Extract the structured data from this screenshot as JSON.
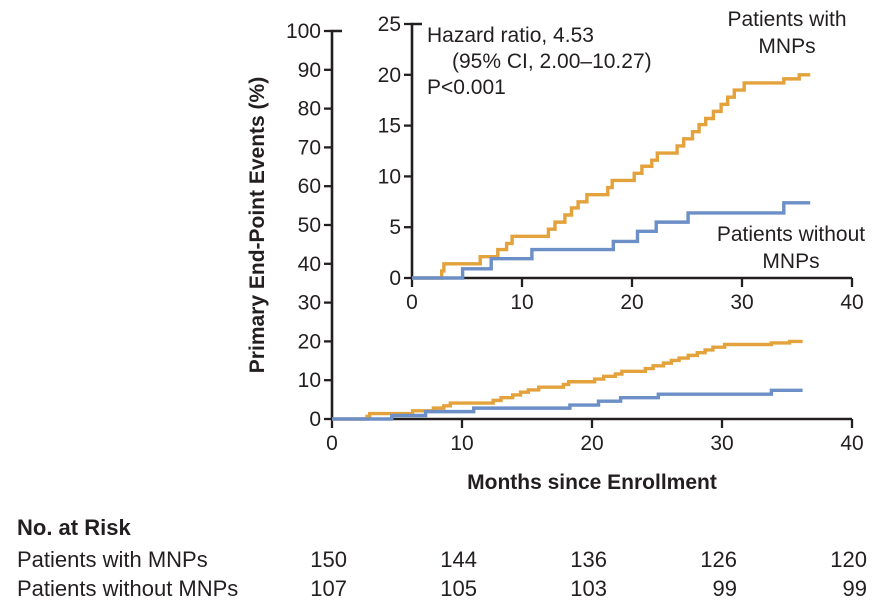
{
  "colors": {
    "with_mnps": "#E3A23C",
    "without_mnps": "#6B8FC6",
    "axis": "#231F20",
    "background": "#ffffff"
  },
  "chart_data": {
    "type": "line",
    "subtype": "kaplan-meier-cumulative-incidence-step",
    "title": "",
    "xlabel": "Months since Enrollment",
    "ylabel": "Primary End-Point Events (%)",
    "grid": false,
    "annotation": {
      "line1": "Hazard ratio, 4.53",
      "line2": "(95% CI, 2.00–10.27)",
      "line3": "P<0.001"
    },
    "main_axes": {
      "xlim": [
        0,
        40
      ],
      "ylim": [
        0,
        100
      ],
      "xticks": [
        0,
        10,
        20,
        30,
        40
      ],
      "yticks": [
        0,
        10,
        20,
        30,
        40,
        50,
        60,
        70,
        80,
        90,
        100
      ]
    },
    "inset_axes": {
      "xlim": [
        0,
        40
      ],
      "ylim": [
        0,
        25
      ],
      "xticks": [
        0,
        10,
        20,
        30,
        40
      ],
      "yticks": [
        0,
        5,
        10,
        15,
        20,
        25
      ]
    },
    "series": [
      {
        "id": "with_mnps",
        "name": "Patients with MNPs",
        "label_lines": [
          "Patients with",
          "MNPs"
        ],
        "color": "#E3A23C",
        "end_month": 36.2,
        "points": [
          [
            0,
            0
          ],
          [
            2.7,
            0.7
          ],
          [
            2.9,
            1.4
          ],
          [
            6.2,
            2.1
          ],
          [
            7.8,
            2.8
          ],
          [
            8.6,
            3.4
          ],
          [
            9.1,
            4.1
          ],
          [
            12.4,
            4.8
          ],
          [
            13.0,
            5.5
          ],
          [
            13.9,
            6.2
          ],
          [
            14.5,
            6.9
          ],
          [
            15.1,
            7.5
          ],
          [
            15.9,
            8.2
          ],
          [
            17.8,
            8.9
          ],
          [
            18.2,
            9.6
          ],
          [
            20.2,
            10.3
          ],
          [
            20.9,
            11.0
          ],
          [
            21.8,
            11.6
          ],
          [
            22.3,
            12.3
          ],
          [
            24.1,
            13.0
          ],
          [
            24.7,
            13.7
          ],
          [
            25.5,
            14.4
          ],
          [
            26.1,
            15.1
          ],
          [
            26.7,
            15.7
          ],
          [
            27.4,
            16.4
          ],
          [
            28.1,
            17.1
          ],
          [
            28.7,
            17.8
          ],
          [
            29.3,
            18.5
          ],
          [
            30.2,
            19.2
          ],
          [
            33.8,
            19.6
          ],
          [
            35.2,
            20.0
          ]
        ]
      },
      {
        "id": "without_mnps",
        "name": "Patients without MNPs",
        "label_lines": [
          "Patients without",
          "MNPs"
        ],
        "color": "#6B8FC6",
        "end_month": 36.2,
        "points": [
          [
            0,
            0
          ],
          [
            4.6,
            0.9
          ],
          [
            7.2,
            1.9
          ],
          [
            10.9,
            2.8
          ],
          [
            18.3,
            3.6
          ],
          [
            20.5,
            4.6
          ],
          [
            22.2,
            5.5
          ],
          [
            25.1,
            6.4
          ],
          [
            33.8,
            7.4
          ]
        ]
      }
    ]
  },
  "risk_table": {
    "title": "No. at Risk",
    "timepoints": [
      0,
      10,
      20,
      30,
      40
    ],
    "rows": [
      {
        "label": "Patients with MNPs",
        "values": [
          "150",
          "144",
          "136",
          "126",
          "120"
        ]
      },
      {
        "label": "Patients without MNPs",
        "values": [
          "107",
          "105",
          "103",
          "99",
          "99"
        ]
      }
    ]
  }
}
